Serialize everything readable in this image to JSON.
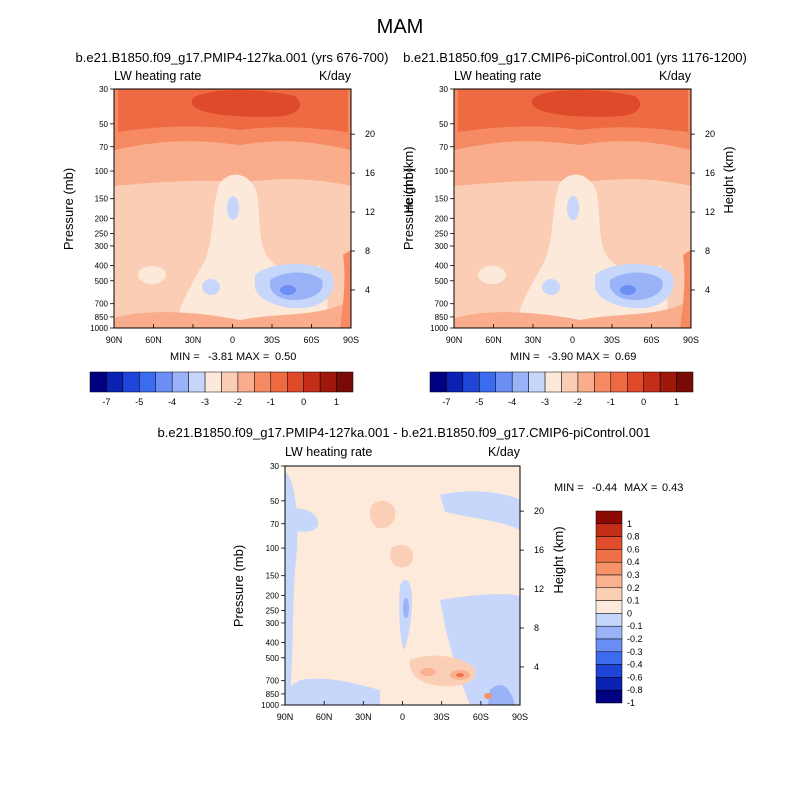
{
  "main_title": "MAM",
  "colors": {
    "ctrl_levels": [
      "#000080",
      "#0b21b4",
      "#1f45d8",
      "#3b6cf0",
      "#6b8ef5",
      "#9ab2f8",
      "#c7d6fb",
      "#fce9da",
      "#fbcdb4",
      "#f9ad8c",
      "#f68a62",
      "#ee6a43",
      "#de4a2a",
      "#c42d17",
      "#a0180b",
      "#7a0a04"
    ],
    "diff_levels": [
      "#000080",
      "#0b21b4",
      "#1f45d8",
      "#3b6cf0",
      "#6b8ef5",
      "#9ab2f8",
      "#c7d6fb",
      "#fdeadb",
      "#fbcfb6",
      "#f9b18f",
      "#f69266",
      "#f07047",
      "#e04d2d",
      "#c42d17",
      "#8b0a04"
    ]
  },
  "chart_data": [
    {
      "type": "heatmap",
      "title": "b.e21.B1850.f09_g17.PMIP4-127ka.001 (yrs 676-700)",
      "left_label": "LW heating rate",
      "right_label": "K/day",
      "ylabel": "Pressure (mb)",
      "ylabel_right": "Height (km)",
      "x_ticks": [
        "90N",
        "60N",
        "30N",
        "0",
        "30S",
        "60S",
        "90S"
      ],
      "y_ticks": [
        30,
        50,
        70,
        100,
        150,
        200,
        250,
        300,
        400,
        500,
        700,
        850,
        1000
      ],
      "y_ticks_right": [
        20,
        16,
        12,
        8,
        4
      ],
      "min_label": "MIN =",
      "min_value": "-3.81",
      "max_label": "MAX =",
      "max_value": "0.50",
      "colorbar_labels": [
        "-7",
        "-5",
        "-4",
        "-3",
        "-2",
        "-1",
        "0",
        "1"
      ]
    },
    {
      "type": "heatmap",
      "title": "b.e21.B1850.f09_g17.CMIP6-piControl.001 (yrs 1176-1200)",
      "left_label": "LW heating rate",
      "right_label": "K/day",
      "ylabel": "Pressure (mb)",
      "ylabel_right": "Height (km)",
      "x_ticks": [
        "90N",
        "60N",
        "30N",
        "0",
        "30S",
        "60S",
        "90S"
      ],
      "y_ticks": [
        30,
        50,
        70,
        100,
        150,
        200,
        250,
        300,
        400,
        500,
        700,
        850,
        1000
      ],
      "y_ticks_right": [
        20,
        16,
        12,
        8,
        4
      ],
      "min_label": "MIN =",
      "min_value": "-3.90",
      "max_label": "MAX =",
      "max_value": "0.69",
      "colorbar_labels": [
        "-7",
        "-5",
        "-4",
        "-3",
        "-2",
        "-1",
        "0",
        "1"
      ]
    },
    {
      "type": "heatmap",
      "title": "b.e21.B1850.f09_g17.PMIP4-127ka.001 - b.e21.B1850.f09_g17.CMIP6-piControl.001",
      "left_label": "LW heating rate",
      "right_label": "K/day",
      "ylabel": "Pressure (mb)",
      "ylabel_right": "Height (km)",
      "x_ticks": [
        "90N",
        "60N",
        "30N",
        "0",
        "30S",
        "60S",
        "90S"
      ],
      "y_ticks": [
        30,
        50,
        70,
        100,
        150,
        200,
        250,
        300,
        400,
        500,
        700,
        850,
        1000
      ],
      "y_ticks_right": [
        20,
        16,
        12,
        8,
        4
      ],
      "min_label": "MIN =",
      "min_value": "-0.44",
      "max_label": "MAX =",
      "max_value": "0.43",
      "colorbar_labels": [
        "1",
        "0.8",
        "0.6",
        "0.4",
        "0.3",
        "0.2",
        "0.1",
        "0",
        "-0.1",
        "-0.2",
        "-0.3",
        "-0.4",
        "-0.6",
        "-0.8",
        "-1"
      ]
    }
  ]
}
